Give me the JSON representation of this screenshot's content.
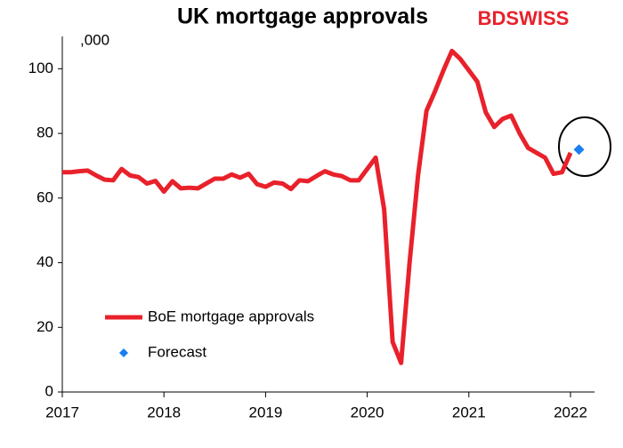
{
  "brand": "BDSWISS",
  "chart_data": {
    "type": "line",
    "title": "UK mortgage approvals",
    "unit_label": ",000",
    "categories": [
      "2017",
      null,
      null,
      null,
      null,
      null,
      null,
      null,
      null,
      null,
      null,
      null,
      "2018",
      null,
      null,
      null,
      null,
      null,
      null,
      null,
      null,
      null,
      null,
      null,
      "2019",
      null,
      null,
      null,
      null,
      null,
      null,
      null,
      null,
      null,
      null,
      null,
      "2020",
      null,
      null,
      null,
      null,
      null,
      null,
      null,
      null,
      null,
      null,
      null,
      "2021",
      null,
      null,
      null,
      null,
      null,
      null,
      null,
      null,
      null,
      null,
      null,
      "2022",
      null
    ],
    "series": [
      {
        "name": "BoE mortgage approvals",
        "color": "#e8212b",
        "marker": "line",
        "values": [
          68,
          68,
          68.3,
          68.5,
          67,
          65.7,
          65.5,
          69,
          67,
          66.5,
          64.5,
          65.3,
          62,
          65.2,
          63,
          63.2,
          63,
          64.5,
          66,
          66,
          67.3,
          66.3,
          67.5,
          64.3,
          63.5,
          64.8,
          64.5,
          62.8,
          65.5,
          65.2,
          66.8,
          68.3,
          67.3,
          66.8,
          65.5,
          65.5,
          69,
          72.5,
          56.5,
          15.5,
          9,
          40,
          67,
          87,
          93,
          99.5,
          105.5,
          103,
          99.5,
          96,
          86.5,
          82,
          84.5,
          85.5,
          80,
          75.5,
          74,
          72.5,
          67.5,
          68,
          74,
          null
        ]
      },
      {
        "name": "Forecast",
        "color": "#1a7ff0",
        "marker": "diamond",
        "values": [
          null,
          null,
          null,
          null,
          null,
          null,
          null,
          null,
          null,
          null,
          null,
          null,
          null,
          null,
          null,
          null,
          null,
          null,
          null,
          null,
          null,
          null,
          null,
          null,
          null,
          null,
          null,
          null,
          null,
          null,
          null,
          null,
          null,
          null,
          null,
          null,
          null,
          null,
          null,
          null,
          null,
          null,
          null,
          null,
          null,
          null,
          null,
          null,
          null,
          null,
          null,
          null,
          null,
          null,
          null,
          null,
          null,
          null,
          null,
          null,
          null,
          75
        ]
      }
    ],
    "ylim": [
      0,
      110
    ],
    "yticks": [
      0,
      20,
      40,
      60,
      80,
      100
    ],
    "grid": false
  }
}
